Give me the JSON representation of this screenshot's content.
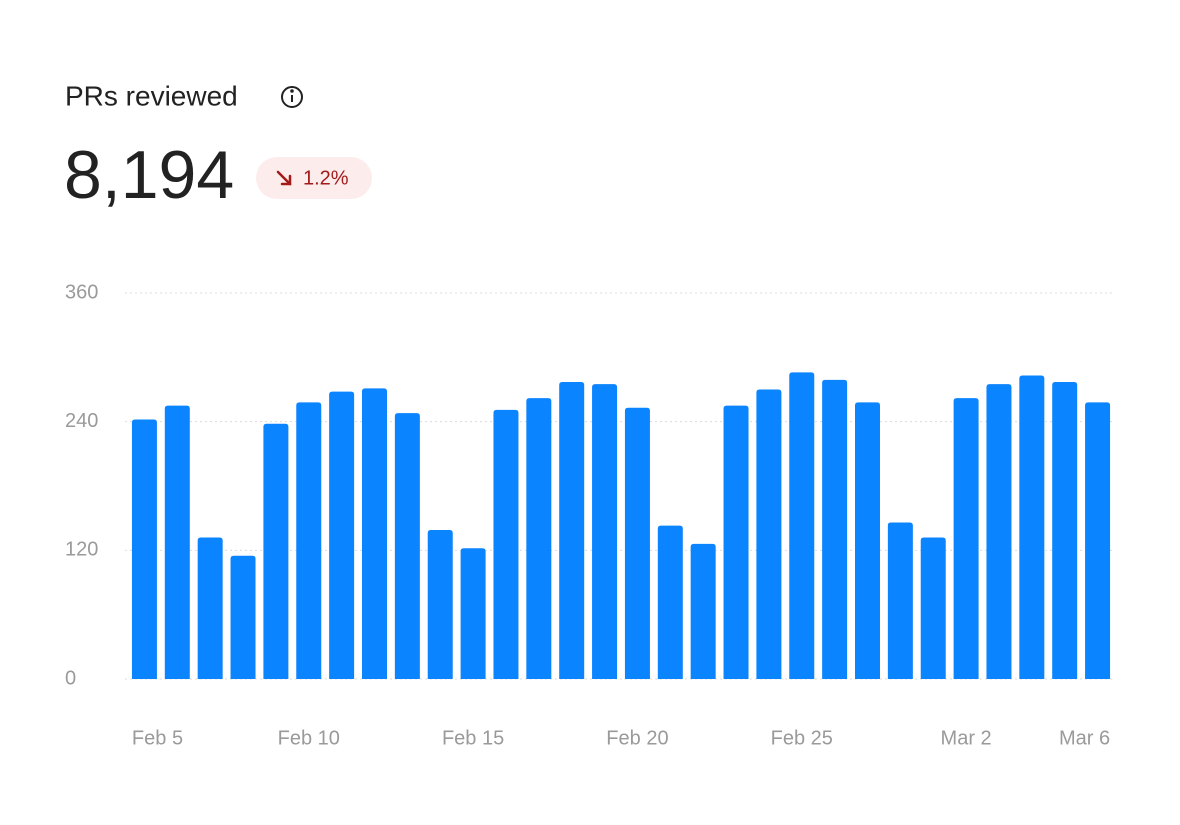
{
  "header": {
    "title": "PRs reviewed",
    "total": "8,194",
    "change": "1.2%"
  },
  "chart_data": {
    "type": "bar",
    "categories": [
      "Feb 5",
      null,
      null,
      null,
      null,
      "Feb 10",
      null,
      null,
      null,
      null,
      "Feb 15",
      null,
      null,
      null,
      null,
      "Feb 20",
      null,
      null,
      null,
      null,
      "Feb 25",
      null,
      null,
      null,
      null,
      "Mar 2",
      null,
      null,
      null,
      "Mar 6"
    ],
    "values": [
      242,
      255,
      132,
      115,
      238,
      258,
      268,
      271,
      248,
      139,
      122,
      251,
      262,
      277,
      275,
      253,
      143,
      126,
      255,
      270,
      286,
      279,
      258,
      146,
      132,
      262,
      275,
      283,
      277,
      258
    ],
    "color": "#0a84ff",
    "ylim": [
      0,
      360
    ],
    "yticks": [
      0,
      120,
      240,
      360
    ],
    "grid": true
  }
}
